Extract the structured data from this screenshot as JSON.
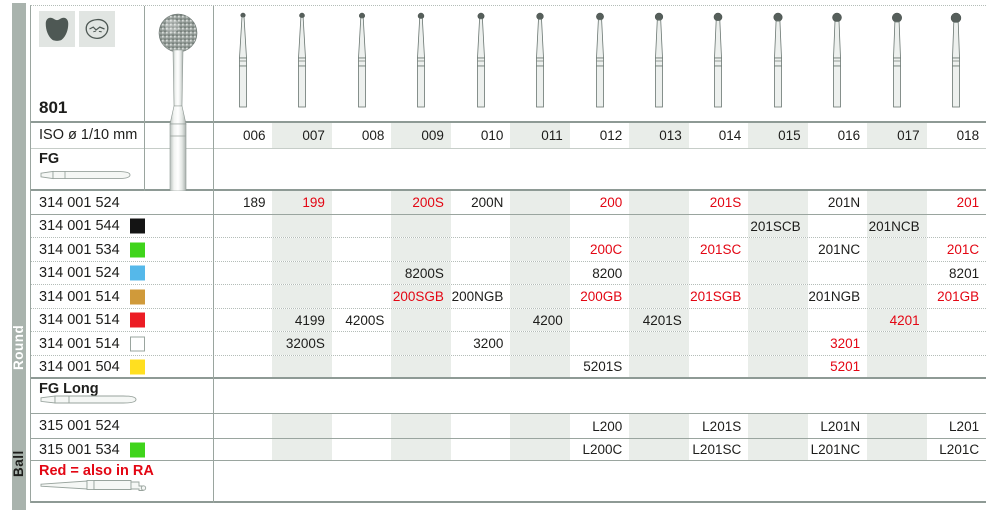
{
  "figure": {
    "number": "801"
  },
  "sidebar": {
    "shape_label": "Round",
    "group_label": "Ball"
  },
  "header_icons": [
    {
      "name": "molar-tooth-icon"
    },
    {
      "name": "occlusal-view-icon"
    }
  ],
  "iso_row": {
    "label": "ISO ø 1/10 mm",
    "sizes": [
      "006",
      "007",
      "008",
      "009",
      "010",
      "011",
      "012",
      "013",
      "014",
      "015",
      "016",
      "017",
      "018"
    ]
  },
  "sections": {
    "fg_label": "FG",
    "fg_long_label": "FG Long"
  },
  "footnote": {
    "text": "Red = also in RA"
  },
  "rows": [
    {
      "section": "FG",
      "code": "314 001 524",
      "chip": null,
      "cells": [
        {
          "col": 0,
          "value": "189",
          "red": false
        },
        {
          "col": 1,
          "value": "199",
          "red": true
        },
        {
          "col": 3,
          "value": "200S",
          "red": true
        },
        {
          "col": 4,
          "value": "200N",
          "red": false
        },
        {
          "col": 6,
          "value": "200",
          "red": true
        },
        {
          "col": 8,
          "value": "201S",
          "red": true
        },
        {
          "col": 10,
          "value": "201N",
          "red": false
        },
        {
          "col": 12,
          "value": "201",
          "red": true
        }
      ]
    },
    {
      "section": "FG",
      "code": "314 001 544",
      "chip": "black",
      "cells": [
        {
          "col": 9,
          "value": "201SCB",
          "red": false
        },
        {
          "col": 11,
          "value": "201NCB",
          "red": false
        }
      ]
    },
    {
      "section": "FG",
      "code": "314 001 534",
      "chip": "green",
      "cells": [
        {
          "col": 6,
          "value": "200C",
          "red": true
        },
        {
          "col": 8,
          "value": "201SC",
          "red": true
        },
        {
          "col": 10,
          "value": "201NC",
          "red": false
        },
        {
          "col": 12,
          "value": "201C",
          "red": true
        }
      ]
    },
    {
      "section": "FG",
      "code": "314 001 524",
      "chip": "blue",
      "cells": [
        {
          "col": 3,
          "value": "8200S",
          "red": false
        },
        {
          "col": 6,
          "value": "8200",
          "red": false
        },
        {
          "col": 12,
          "value": "8201",
          "red": false
        }
      ]
    },
    {
      "section": "FG",
      "code": "314 001 514",
      "chip": "orange",
      "cells": [
        {
          "col": 3,
          "value": "200SGB",
          "red": true
        },
        {
          "col": 4,
          "value": "200NGB",
          "red": false
        },
        {
          "col": 6,
          "value": "200GB",
          "red": true
        },
        {
          "col": 8,
          "value": "201SGB",
          "red": true
        },
        {
          "col": 10,
          "value": "201NGB",
          "red": false
        },
        {
          "col": 12,
          "value": "201GB",
          "red": true
        }
      ]
    },
    {
      "section": "FG",
      "code": "314 001 514",
      "chip": "red",
      "cells": [
        {
          "col": 1,
          "value": "4199",
          "red": false
        },
        {
          "col": 2,
          "value": "4200S",
          "red": false
        },
        {
          "col": 5,
          "value": "4200",
          "red": false
        },
        {
          "col": 7,
          "value": "4201S",
          "red": false
        },
        {
          "col": 11,
          "value": "4201",
          "red": true
        }
      ]
    },
    {
      "section": "FG",
      "code": "314 001 514",
      "chip": "white",
      "cells": [
        {
          "col": 1,
          "value": "3200S",
          "red": false
        },
        {
          "col": 4,
          "value": "3200",
          "red": false
        },
        {
          "col": 10,
          "value": "3201",
          "red": true
        }
      ]
    },
    {
      "section": "FG",
      "code": "314 001 504",
      "chip": "yellow",
      "cells": [
        {
          "col": 6,
          "value": "5201S",
          "red": false
        },
        {
          "col": 10,
          "value": "5201",
          "red": true
        }
      ]
    },
    {
      "section": "FG Long",
      "code": "315 001 524",
      "chip": null,
      "cells": [
        {
          "col": 6,
          "value": "L200",
          "red": false
        },
        {
          "col": 8,
          "value": "L201S",
          "red": false
        },
        {
          "col": 10,
          "value": "L201N",
          "red": false
        },
        {
          "col": 12,
          "value": "L201",
          "red": false
        }
      ]
    },
    {
      "section": "FG Long",
      "code": "315 001 534",
      "chip": "green",
      "cells": [
        {
          "col": 6,
          "value": "L200C",
          "red": false
        },
        {
          "col": 8,
          "value": "L201SC",
          "red": false
        },
        {
          "col": 10,
          "value": "L201NC",
          "red": false
        },
        {
          "col": 12,
          "value": "L201C",
          "red": false
        }
      ]
    }
  ],
  "colors": {
    "red_text": "#e30613",
    "column_band": "#e9ede9",
    "sidebar_strip": "#a9b3ad",
    "chips": {
      "black": "#141414",
      "green": "#3fd41b",
      "blue": "#55b8ea",
      "orange": "#d09a3a",
      "red": "#ec1c24",
      "white": "#ffffff",
      "yellow": "#ffdf20"
    }
  }
}
